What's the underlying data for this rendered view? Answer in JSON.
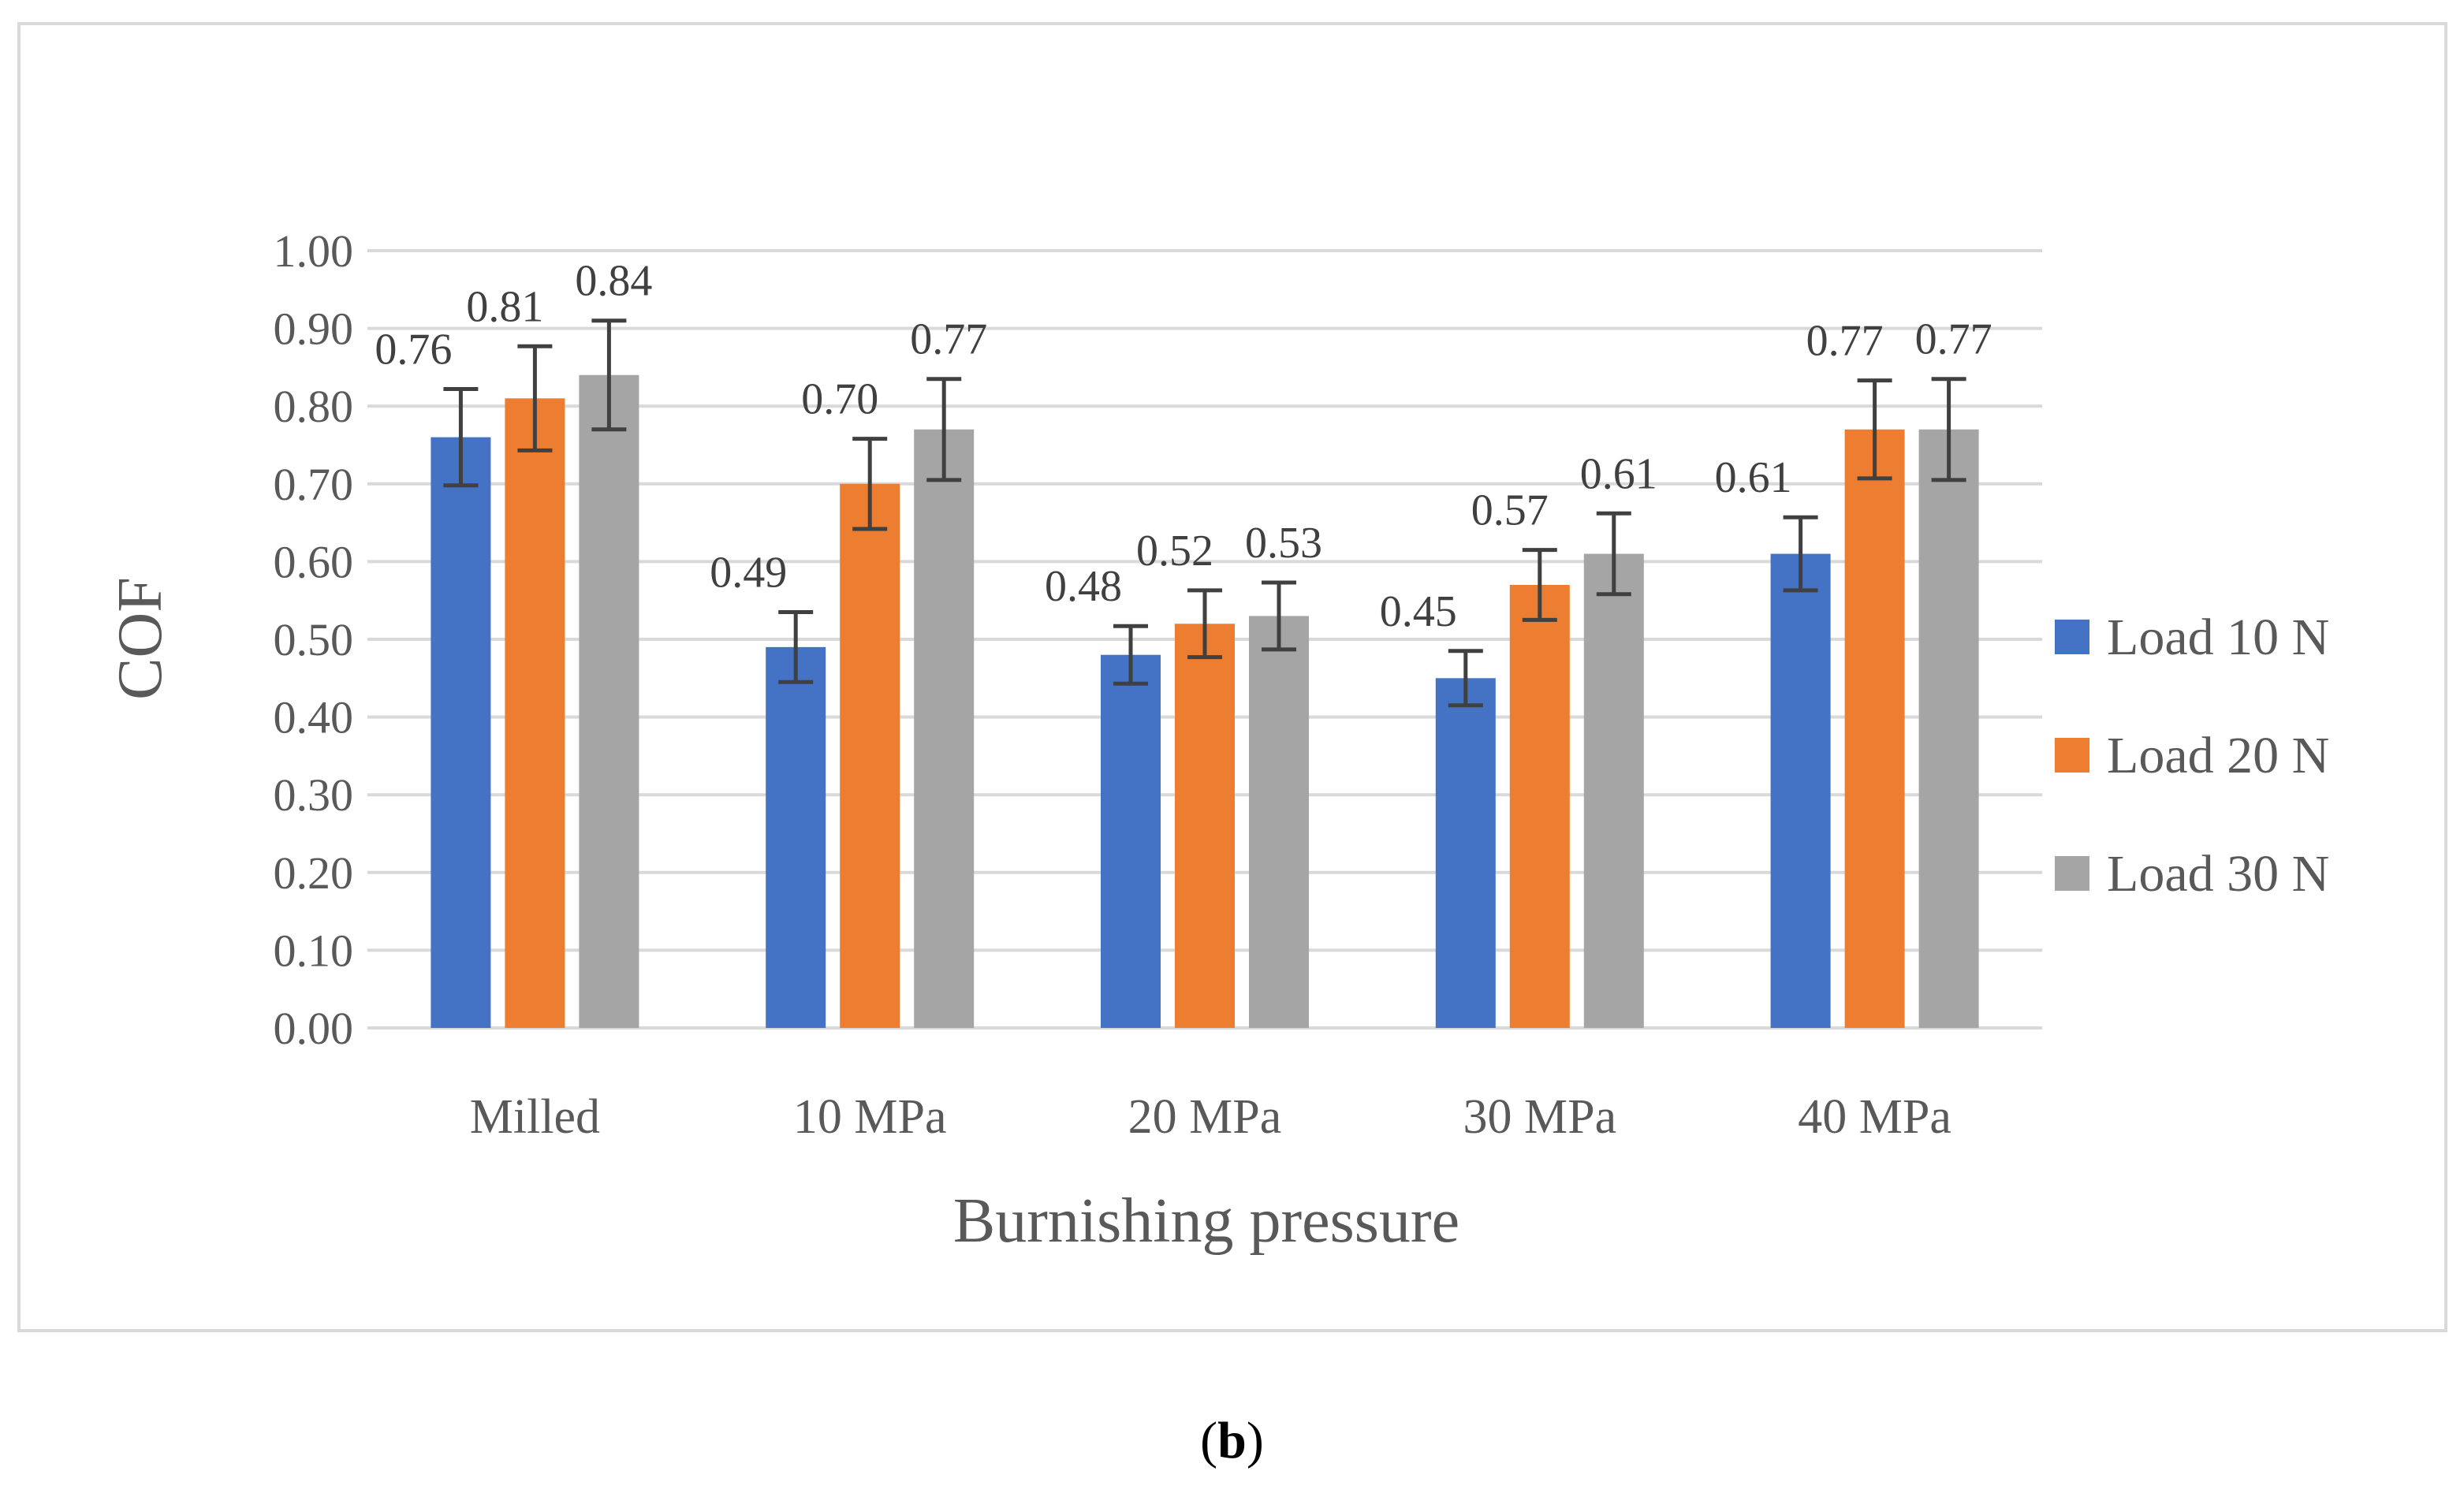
{
  "chart_data": {
    "type": "bar",
    "title": "",
    "xlabel": "Burnishing pressure",
    "ylabel": "COF",
    "ylim": [
      0,
      1.0
    ],
    "yticks": [
      "0.00",
      "0.10",
      "0.20",
      "0.30",
      "0.40",
      "0.50",
      "0.60",
      "0.70",
      "0.80",
      "0.90",
      "1.00"
    ],
    "categories": [
      "Milled",
      "10 MPa",
      "20 MPa",
      "30 MPa",
      "40 MPa"
    ],
    "grid": true,
    "legend_position": "right",
    "series": [
      {
        "name": "Load 10 N",
        "color": "#4472C4",
        "values": [
          0.76,
          0.49,
          0.48,
          0.45,
          0.61
        ],
        "labels": [
          "0.76",
          "0.49",
          "0.48",
          "0.45",
          "0.61"
        ],
        "error": [
          0.062,
          0.045,
          0.037,
          0.035,
          0.047
        ]
      },
      {
        "name": "Load 20 N",
        "color": "#ED7D31",
        "values": [
          0.81,
          0.7,
          0.52,
          0.57,
          0.77
        ],
        "labels": [
          "0.81",
          "0.70",
          "0.52",
          "0.57",
          "0.77"
        ],
        "error": [
          0.067,
          0.058,
          0.043,
          0.045,
          0.063
        ]
      },
      {
        "name": "Load 30 N",
        "color": "#A5A5A5",
        "values": [
          0.84,
          0.77,
          0.53,
          0.61,
          0.77
        ],
        "labels": [
          "0.84",
          "0.77",
          "0.53",
          "0.61",
          "0.77"
        ],
        "error": [
          0.07,
          0.065,
          0.043,
          0.052,
          0.065
        ]
      }
    ]
  },
  "caption": {
    "open": "(",
    "letter": "b",
    "close": ")"
  }
}
